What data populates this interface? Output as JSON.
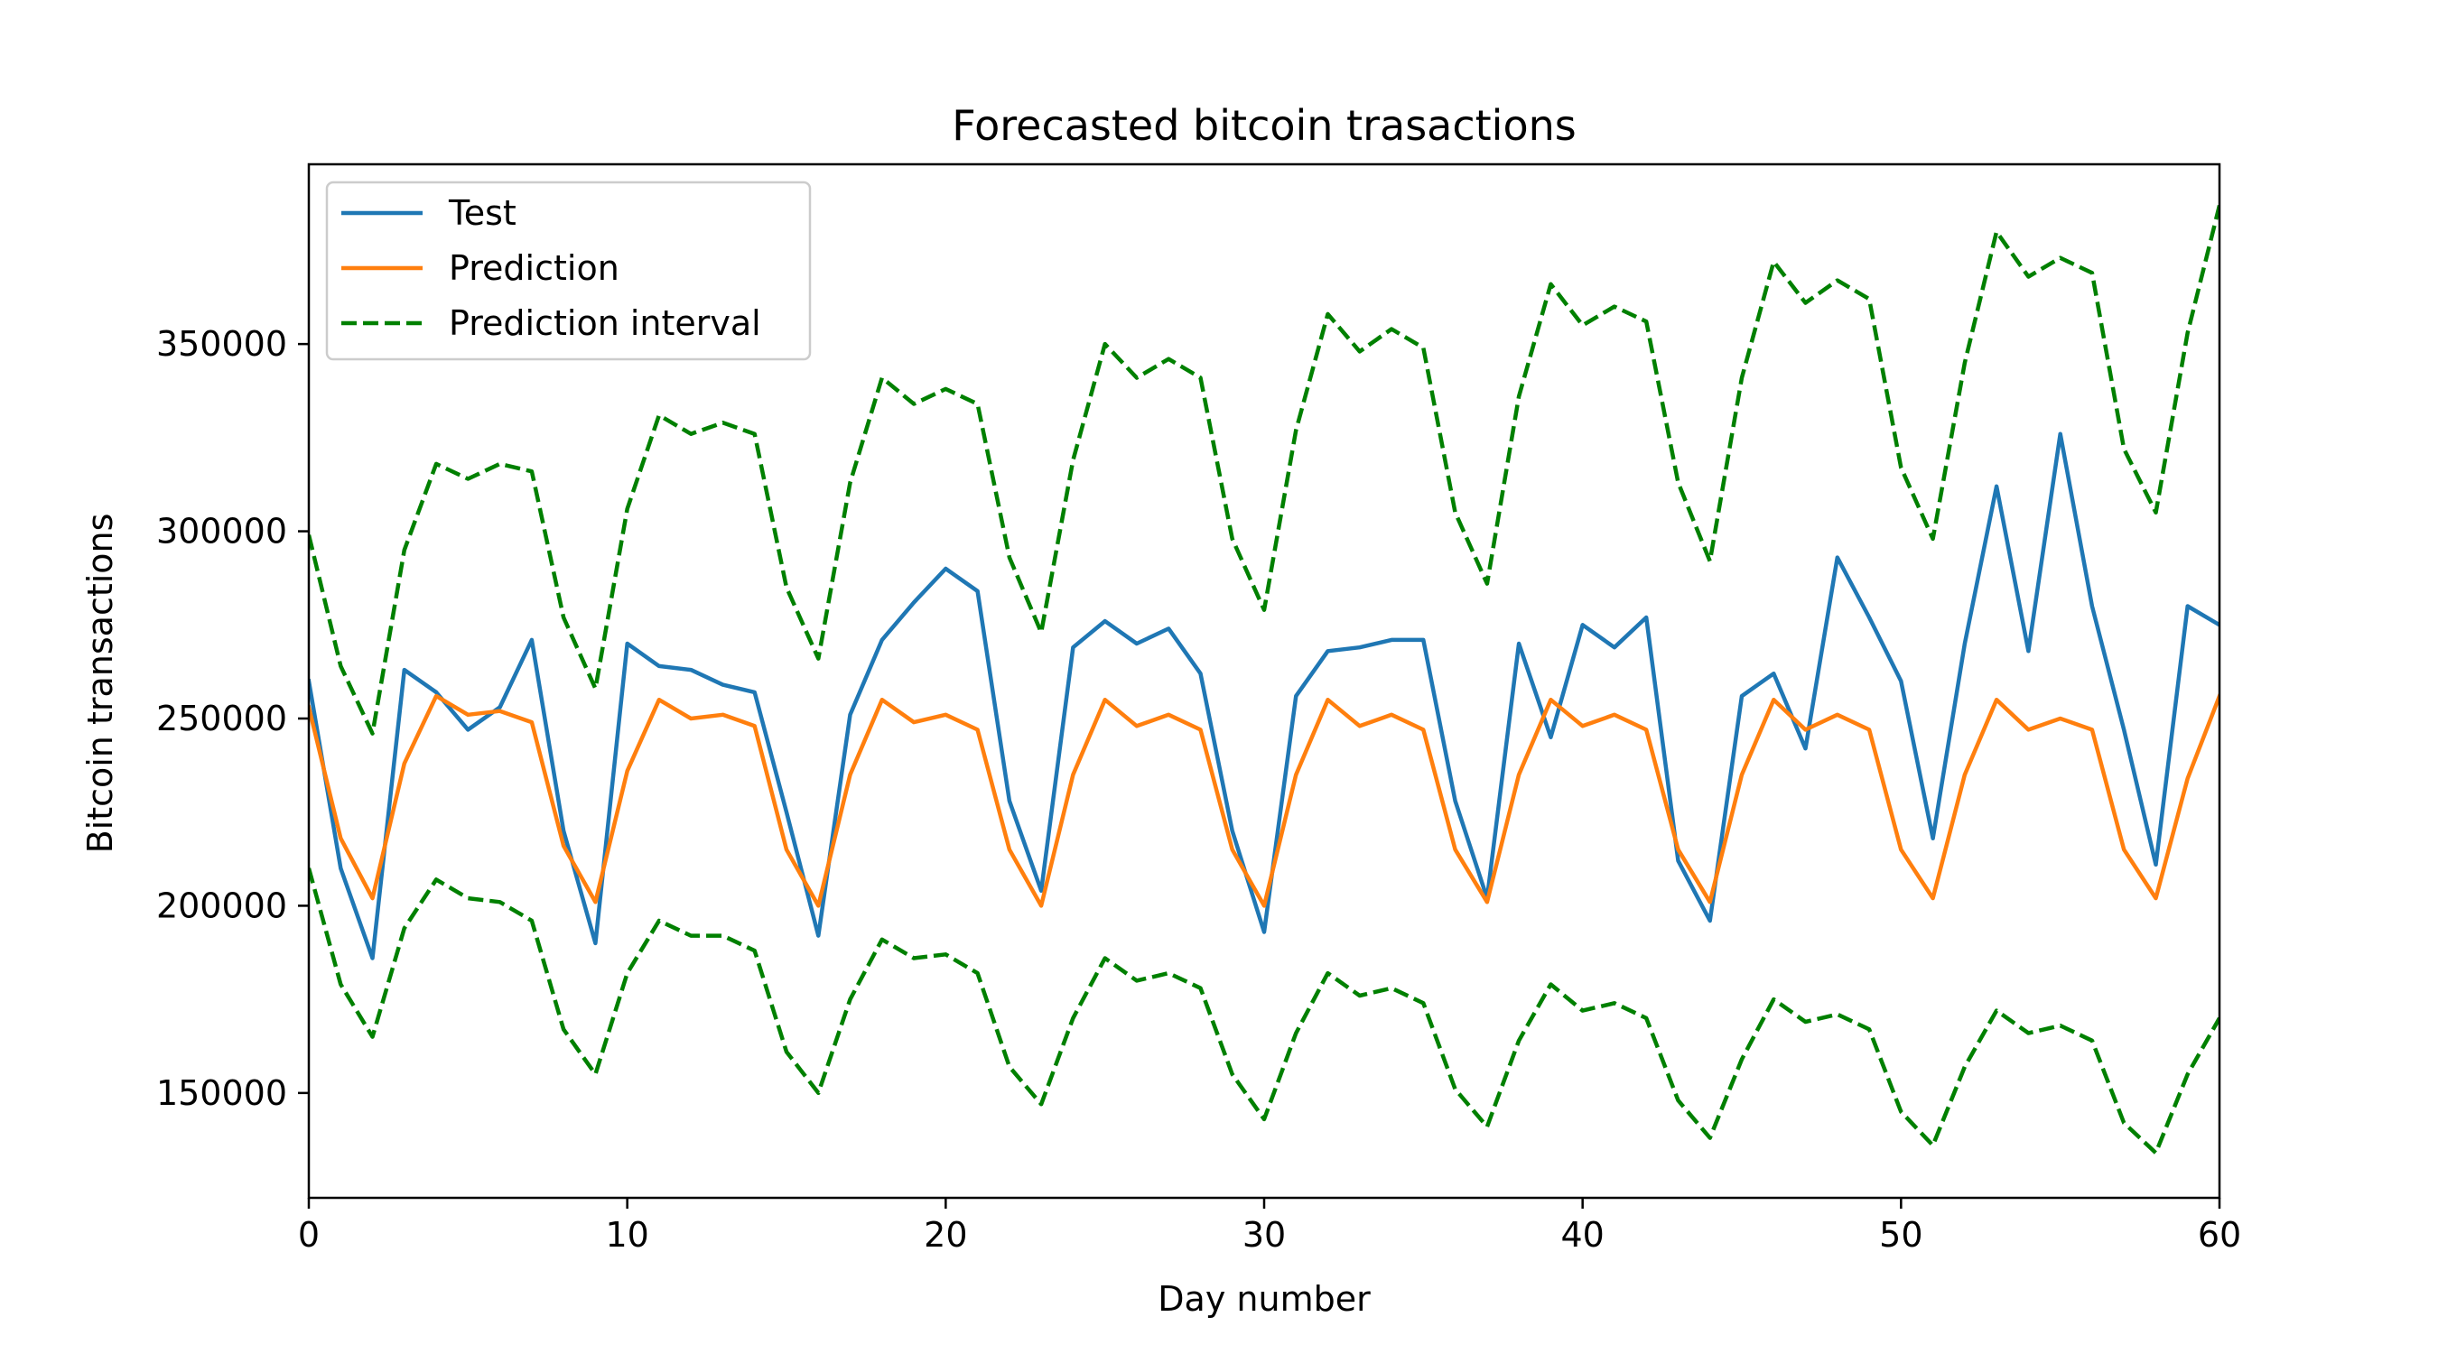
{
  "chart_data": {
    "type": "line",
    "title": "Forecasted bitcoin trasactions",
    "xlabel": "Day number",
    "ylabel": "Bitcoin transactions",
    "xlim": [
      0,
      60
    ],
    "ylim": [
      122000,
      398000
    ],
    "xticks": [
      0,
      10,
      20,
      30,
      40,
      50,
      60
    ],
    "yticks": [
      150000,
      200000,
      250000,
      300000,
      350000
    ],
    "grid": false,
    "legend_position": "top-left",
    "x": [
      0,
      1,
      2,
      3,
      4,
      5,
      6,
      7,
      8,
      9,
      10,
      11,
      12,
      13,
      14,
      15,
      16,
      17,
      18,
      19,
      20,
      21,
      22,
      23,
      24,
      25,
      26,
      27,
      28,
      29,
      30,
      31,
      32,
      33,
      34,
      35,
      36,
      37,
      38,
      39,
      40,
      41,
      42,
      43,
      44,
      45,
      46,
      47,
      48,
      49,
      50,
      51,
      52,
      53,
      54,
      55,
      56,
      57,
      58,
      59,
      60
    ],
    "series": [
      {
        "name": "Test",
        "color": "#1f77b4",
        "style": "solid",
        "values": [
          260000,
          210000,
          186000,
          263000,
          257000,
          247000,
          253000,
          271000,
          220000,
          190000,
          270000,
          264000,
          263000,
          259000,
          257000,
          225000,
          192000,
          251000,
          271000,
          281000,
          290000,
          284000,
          228000,
          204000,
          269000,
          276000,
          270000,
          274000,
          262000,
          220000,
          193000,
          256000,
          268000,
          269000,
          271000,
          271000,
          228000,
          202000,
          270000,
          245000,
          275000,
          269000,
          277000,
          212000,
          196000,
          256000,
          262000,
          242000,
          293000,
          277000,
          260000,
          218000,
          270000,
          312000,
          268000,
          326000,
          280000,
          247000,
          211000,
          280000,
          275000
        ]
      },
      {
        "name": "Prediction",
        "color": "#ff7f0e",
        "style": "solid",
        "values": [
          253000,
          218000,
          202000,
          238000,
          256000,
          251000,
          252000,
          249000,
          216000,
          201000,
          236000,
          255000,
          250000,
          251000,
          248000,
          215000,
          200000,
          235000,
          255000,
          249000,
          251000,
          247000,
          215000,
          200000,
          235000,
          255000,
          248000,
          251000,
          247000,
          215000,
          200000,
          235000,
          255000,
          248000,
          251000,
          247000,
          215000,
          201000,
          235000,
          255000,
          248000,
          251000,
          247000,
          215000,
          201000,
          235000,
          255000,
          247000,
          251000,
          247000,
          215000,
          202000,
          235000,
          255000,
          247000,
          250000,
          247000,
          215000,
          202000,
          234000,
          256000
        ]
      },
      {
        "name": "Prediction interval",
        "color": "#008000",
        "style": "dashed",
        "values": [
          299000,
          264000,
          246000,
          295000,
          318000,
          314000,
          318000,
          316000,
          277000,
          258000,
          306000,
          331000,
          326000,
          329000,
          326000,
          285000,
          266000,
          313000,
          341000,
          334000,
          338000,
          334000,
          293000,
          273000,
          319000,
          350000,
          341000,
          346000,
          341000,
          298000,
          279000,
          327000,
          358000,
          348000,
          354000,
          349000,
          305000,
          286000,
          336000,
          366000,
          355000,
          360000,
          356000,
          313000,
          292000,
          341000,
          372000,
          361000,
          367000,
          362000,
          317000,
          298000,
          345000,
          380000,
          368000,
          373000,
          369000,
          322000,
          305000,
          353000,
          387000
        ]
      },
      {
        "name": "Prediction interval",
        "color": "#008000",
        "style": "dashed",
        "values": [
          210000,
          179000,
          165000,
          194000,
          207000,
          202000,
          201000,
          196000,
          167000,
          155000,
          182000,
          196000,
          192000,
          192000,
          188000,
          161000,
          150000,
          175000,
          191000,
          186000,
          187000,
          182000,
          157000,
          147000,
          170000,
          186000,
          180000,
          182000,
          178000,
          155000,
          143000,
          166000,
          182000,
          176000,
          178000,
          174000,
          151000,
          141000,
          164000,
          179000,
          172000,
          174000,
          170000,
          148000,
          138000,
          159000,
          175000,
          169000,
          171000,
          167000,
          145000,
          136000,
          157000,
          172000,
          166000,
          168000,
          164000,
          142000,
          134000,
          155000,
          170000
        ]
      }
    ]
  }
}
